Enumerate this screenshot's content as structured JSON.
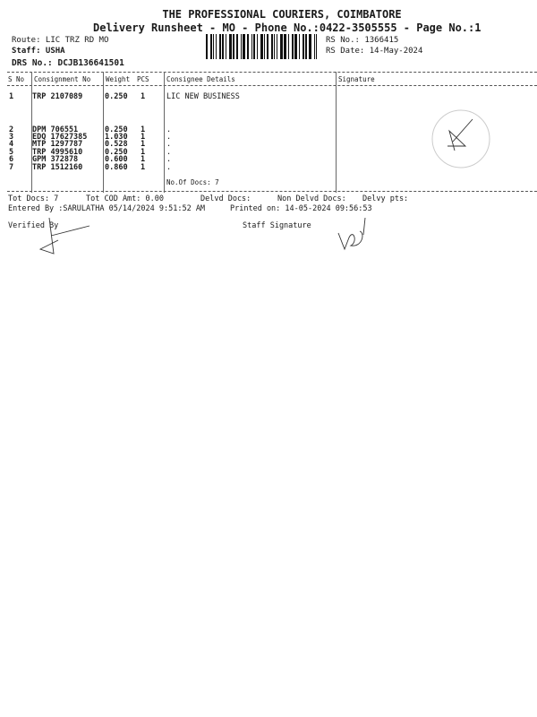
{
  "header": {
    "company": "THE PROFESSIONAL COURIERS, COIMBATORE",
    "subtitle": "Delivery Runsheet - MO - Phone No.:0422-3505555 - Page No.:1",
    "route": "Route: LIC TRZ RD MO",
    "staff": "Staff: USHA",
    "drs_no": "DRS No.: DCJB136641501",
    "rs_no": "RS No.: 1366415",
    "rs_date": "RS Date: 14-May-2024"
  },
  "table": {
    "columns": [
      "S No",
      "Consignment No",
      "Weight",
      "PCS",
      "Consignee Details",
      "Signature"
    ],
    "rows": [
      {
        "sno": "1",
        "consignment": "TRP 2107089",
        "weight": "0.250",
        "pcs": "1",
        "consignee": "LIC NEW BUSINESS"
      },
      {
        "sno": "2",
        "consignment": "DPM 706551",
        "weight": "0.250",
        "pcs": "1",
        "consignee": "."
      },
      {
        "sno": "3",
        "consignment": "EDQ 17627385",
        "weight": "1.030",
        "pcs": "1",
        "consignee": "."
      },
      {
        "sno": "4",
        "consignment": "MTP 1297787",
        "weight": "0.528",
        "pcs": "1",
        "consignee": "."
      },
      {
        "sno": "5",
        "consignment": "TRP 4995610",
        "weight": "0.250",
        "pcs": "1",
        "consignee": "."
      },
      {
        "sno": "6",
        "consignment": "GPM 372878",
        "weight": "0.600",
        "pcs": "1",
        "consignee": "."
      },
      {
        "sno": "7",
        "consignment": "TRP 1512160",
        "weight": "0.860",
        "pcs": "1",
        "consignee": "."
      }
    ],
    "no_of_docs": "No.Of Docs: 7"
  },
  "footer": {
    "tot_docs": "Tot Docs:   7",
    "tot_cod": "Tot COD Amt:    0.00",
    "delvd_docs": "Delvd Docs:",
    "non_delvd_docs": "Non Delvd Docs:",
    "delvy_pts": "Delvy pts:",
    "entered_by": "Entered By :SARULATHA 05/14/2024 9:51:52 AM",
    "printed_on": "Printed on: 14-05-2024 09:56:53",
    "verified_by": "Verified By",
    "staff_signature": "Staff Signature"
  }
}
